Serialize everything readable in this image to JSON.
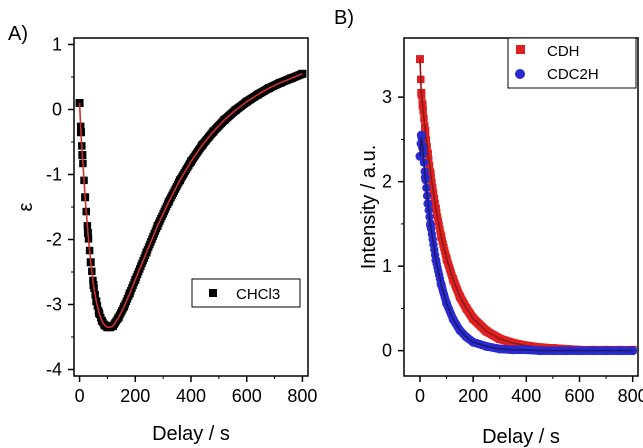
{
  "chart_data": [
    {
      "panel_label": "A)",
      "type": "scatter",
      "xlabel": "Delay / s",
      "ylabel": "ε",
      "xlim": [
        -20,
        820
      ],
      "ylim": [
        -4.1,
        1.1
      ],
      "xticks": [
        0,
        200,
        400,
        600,
        800
      ],
      "yticks": [
        1,
        0,
        -1,
        -2,
        -3,
        -4
      ],
      "legend": {
        "position": "lower-right"
      },
      "series": [
        {
          "name": "CHCl3",
          "marker": "square",
          "color": "#000000",
          "fit_color": "#d03030",
          "x": [
            0,
            5,
            10,
            20,
            30,
            40,
            50,
            60,
            70,
            80,
            90,
            100,
            110,
            120,
            140,
            160,
            180,
            200,
            240,
            280,
            320,
            360,
            400,
            440,
            480,
            520,
            560,
            600,
            640,
            680,
            720,
            760,
            800
          ],
          "y": [
            0.1,
            -0.35,
            -0.7,
            -1.35,
            -1.9,
            -2.35,
            -2.7,
            -2.95,
            -3.13,
            -3.25,
            -3.32,
            -3.35,
            -3.35,
            -3.33,
            -3.2,
            -3.03,
            -2.83,
            -2.62,
            -2.2,
            -1.79,
            -1.42,
            -1.09,
            -0.8,
            -0.55,
            -0.34,
            -0.16,
            -0.01,
            0.12,
            0.23,
            0.33,
            0.41,
            0.48,
            0.55
          ]
        }
      ]
    },
    {
      "panel_label": "B)",
      "type": "scatter",
      "xlabel": "Delay / s",
      "ylabel": "Intensity / a.u.",
      "xlim": [
        -60,
        820
      ],
      "ylim": [
        -0.3,
        3.7
      ],
      "xticks": [
        0,
        200,
        400,
        600,
        800
      ],
      "yticks": [
        3,
        2,
        1,
        0
      ],
      "legend": {
        "position": "top-right"
      },
      "series": [
        {
          "name": "CDH",
          "marker": "square",
          "color": "#e02020",
          "fit_color": "#8b1a1a",
          "x": [
            0,
            5,
            10,
            20,
            30,
            40,
            60,
            80,
            100,
            125,
            150,
            175,
            200,
            250,
            300,
            350,
            400,
            450,
            500,
            550,
            600,
            650,
            700,
            750,
            800
          ],
          "y": [
            3.45,
            3.05,
            2.9,
            2.6,
            2.33,
            2.09,
            1.68,
            1.35,
            1.09,
            0.84,
            0.64,
            0.5,
            0.38,
            0.23,
            0.14,
            0.09,
            0.06,
            0.04,
            0.03,
            0.02,
            0.01,
            0.01,
            0.01,
            0.01,
            0.01
          ]
        },
        {
          "name": "CDC2H",
          "marker": "circle",
          "color": "#2a2ad0",
          "fit_color": "#1a1a70",
          "x": [
            0,
            5,
            10,
            20,
            30,
            40,
            60,
            80,
            100,
            125,
            150,
            175,
            200,
            250,
            300,
            350,
            400,
            450,
            500,
            550,
            600,
            650,
            700,
            750,
            800
          ],
          "y": [
            2.3,
            2.55,
            2.4,
            2.05,
            1.74,
            1.48,
            1.07,
            0.78,
            0.56,
            0.37,
            0.24,
            0.16,
            0.1,
            0.05,
            0.02,
            0.01,
            0.01,
            0.0,
            0.0,
            0.0,
            0.0,
            0.0,
            0.0,
            0.0,
            0.0
          ]
        }
      ]
    }
  ]
}
